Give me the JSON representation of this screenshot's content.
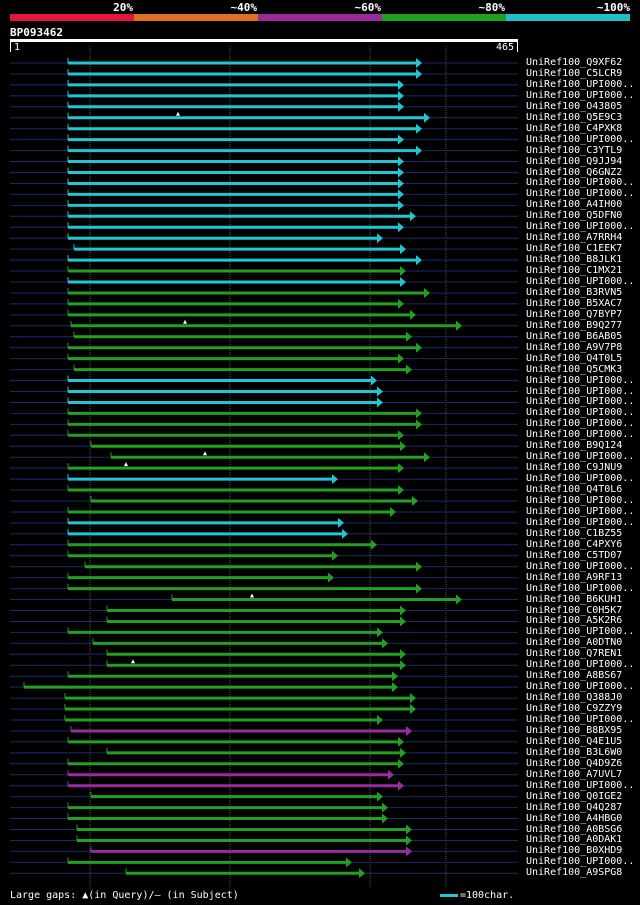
{
  "legend": {
    "segments": [
      {
        "label": "20%",
        "color": "#e3173a"
      },
      {
        "label": "~40%",
        "color": "#e07020"
      },
      {
        "label": "~60%",
        "color": "#9a2a9a"
      },
      {
        "label": "~80%",
        "color": "#20a020"
      },
      {
        "label": "~100%",
        "color": "#20c0c8"
      }
    ]
  },
  "query": {
    "id": "BP093462",
    "start": "1",
    "end": "465"
  },
  "colors": {
    "cyan": "#22c5d4",
    "green": "#22a022",
    "magenta": "#9a2aa0",
    "navy": "#1a2a6a",
    "grid": "#555555"
  },
  "hits": [
    {
      "label": "UniRef100_Q9XF62",
      "s": 68,
      "e": 416,
      "c": "cyan"
    },
    {
      "label": "UniRef100_C5LCR9",
      "s": 68,
      "e": 416,
      "c": "cyan"
    },
    {
      "label": "UniRef100_UPI000..",
      "s": 68,
      "e": 398,
      "c": "cyan"
    },
    {
      "label": "UniRef100_UPI000..",
      "s": 68,
      "e": 398,
      "c": "cyan"
    },
    {
      "label": "UniRef100_O43805",
      "s": 68,
      "e": 398,
      "c": "cyan"
    },
    {
      "label": "UniRef100_Q5E9C3",
      "s": 68,
      "e": 424,
      "c": "cyan",
      "gq": 178
    },
    {
      "label": "UniRef100_C4PXK8",
      "s": 68,
      "e": 416,
      "c": "cyan"
    },
    {
      "label": "UniRef100_UPI000..",
      "s": 68,
      "e": 398,
      "c": "cyan"
    },
    {
      "label": "UniRef100_C3YTL9",
      "s": 68,
      "e": 416,
      "c": "cyan"
    },
    {
      "label": "UniRef100_Q9JJ94",
      "s": 68,
      "e": 398,
      "c": "cyan"
    },
    {
      "label": "UniRef100_Q6GNZ2",
      "s": 68,
      "e": 398,
      "c": "cyan"
    },
    {
      "label": "UniRef100_UPI000..",
      "s": 68,
      "e": 398,
      "c": "cyan"
    },
    {
      "label": "UniRef100_UPI000..",
      "s": 68,
      "e": 398,
      "c": "cyan"
    },
    {
      "label": "UniRef100_A4IH00",
      "s": 68,
      "e": 398,
      "c": "cyan"
    },
    {
      "label": "UniRef100_Q5DFN0",
      "s": 68,
      "e": 410,
      "c": "cyan"
    },
    {
      "label": "UniRef100_UPI000..",
      "s": 68,
      "e": 398,
      "c": "cyan"
    },
    {
      "label": "UniRef100_A7RRH4",
      "s": 68,
      "e": 377,
      "c": "cyan"
    },
    {
      "label": "UniRef100_C1EEK7",
      "s": 74,
      "e": 400,
      "c": "cyan"
    },
    {
      "label": "UniRef100_B8JLK1",
      "s": 68,
      "e": 416,
      "c": "cyan"
    },
    {
      "label": "UniRef100_C1MX21",
      "s": 68,
      "e": 400,
      "c": "green"
    },
    {
      "label": "UniRef100_UPI000..",
      "s": 68,
      "e": 400,
      "c": "cyan"
    },
    {
      "label": "UniRef100_B3RVN5",
      "s": 68,
      "e": 424,
      "c": "green"
    },
    {
      "label": "UniRef100_B5XAC7",
      "s": 68,
      "e": 398,
      "c": "green"
    },
    {
      "label": "UniRef100_Q7BYP7",
      "s": 68,
      "e": 410,
      "c": "green"
    },
    {
      "label": "UniRef100_B9Q277",
      "s": 71,
      "e": 456,
      "c": "green",
      "gq": 185
    },
    {
      "label": "UniRef100_B6AB05",
      "s": 74,
      "e": 406,
      "c": "green"
    },
    {
      "label": "UniRef100_A9V7P8",
      "s": 68,
      "e": 416,
      "c": "green"
    },
    {
      "label": "UniRef100_Q4T0L5",
      "s": 68,
      "e": 398,
      "c": "green"
    },
    {
      "label": "UniRef100_Q5CMK3",
      "s": 74,
      "e": 406,
      "c": "green"
    },
    {
      "label": "UniRef100_UPI000..",
      "s": 68,
      "e": 371,
      "c": "cyan"
    },
    {
      "label": "UniRef100_UPI000..",
      "s": 68,
      "e": 377,
      "c": "cyan"
    },
    {
      "label": "UniRef100_UPI000..",
      "s": 68,
      "e": 377,
      "c": "cyan"
    },
    {
      "label": "UniRef100_UPI000..",
      "s": 68,
      "e": 416,
      "c": "green"
    },
    {
      "label": "UniRef100_UPI000..",
      "s": 68,
      "e": 416,
      "c": "green"
    },
    {
      "label": "UniRef100_UPI000..",
      "s": 68,
      "e": 398,
      "c": "green"
    },
    {
      "label": "UniRef100_B9Q124",
      "s": 91,
      "e": 400,
      "c": "green"
    },
    {
      "label": "UniRef100_UPI000..",
      "s": 111,
      "e": 424,
      "c": "green",
      "gq": 205
    },
    {
      "label": "UniRef100_C9JNU9",
      "s": 68,
      "e": 398,
      "c": "green",
      "gq": 126
    },
    {
      "label": "UniRef100_UPI000..",
      "s": 68,
      "e": 332,
      "c": "cyan"
    },
    {
      "label": "UniRef100_Q4T0L6",
      "s": 68,
      "e": 398,
      "c": "green"
    },
    {
      "label": "UniRef100_UPI000..",
      "s": 91,
      "e": 412,
      "c": "green"
    },
    {
      "label": "UniRef100_UPI000..",
      "s": 68,
      "e": 390,
      "c": "green"
    },
    {
      "label": "UniRef100_UPI000..",
      "s": 68,
      "e": 338,
      "c": "cyan"
    },
    {
      "label": "UniRef100_C1BZ55",
      "s": 68,
      "e": 342,
      "c": "cyan"
    },
    {
      "label": "UniRef100_C4PXY6",
      "s": 68,
      "e": 371,
      "c": "green"
    },
    {
      "label": "UniRef100_C5TD07",
      "s": 68,
      "e": 332,
      "c": "green"
    },
    {
      "label": "UniRef100_UPI000..",
      "s": 85,
      "e": 416,
      "c": "green"
    },
    {
      "label": "UniRef100_A9RF13",
      "s": 68,
      "e": 328,
      "c": "green"
    },
    {
      "label": "UniRef100_UPI000..",
      "s": 68,
      "e": 416,
      "c": "green"
    },
    {
      "label": "UniRef100_B6KUH1",
      "s": 172,
      "e": 456,
      "c": "green",
      "gq": 252
    },
    {
      "label": "UniRef100_C0H5K7",
      "s": 107,
      "e": 400,
      "c": "green"
    },
    {
      "label": "UniRef100_A5K2R6",
      "s": 107,
      "e": 400,
      "c": "green"
    },
    {
      "label": "UniRef100_UPI000..",
      "s": 68,
      "e": 377,
      "c": "green"
    },
    {
      "label": "UniRef100_A0DTN0",
      "s": 93,
      "e": 382,
      "c": "green"
    },
    {
      "label": "UniRef100_Q7REN1",
      "s": 107,
      "e": 400,
      "c": "green"
    },
    {
      "label": "UniRef100_UPI000..",
      "s": 107,
      "e": 400,
      "c": "green",
      "gq": 133
    },
    {
      "label": "UniRef100_A8BS67",
      "s": 68,
      "e": 392,
      "c": "green"
    },
    {
      "label": "UniRef100_UPI000..",
      "s": 24,
      "e": 392,
      "c": "green"
    },
    {
      "label": "UniRef100_Q388J0",
      "s": 65,
      "e": 410,
      "c": "green"
    },
    {
      "label": "UniRef100_C9ZZY9",
      "s": 65,
      "e": 410,
      "c": "green"
    },
    {
      "label": "UniRef100_UPI000..",
      "s": 65,
      "e": 377,
      "c": "green"
    },
    {
      "label": "UniRef100_B8BX95",
      "s": 71,
      "e": 406,
      "c": "magenta"
    },
    {
      "label": "UniRef100_Q4E1U5",
      "s": 68,
      "e": 398,
      "c": "green"
    },
    {
      "label": "UniRef100_B3L6W0",
      "s": 107,
      "e": 400,
      "c": "green"
    },
    {
      "label": "UniRef100_Q4D9Z6",
      "s": 68,
      "e": 398,
      "c": "green"
    },
    {
      "label": "UniRef100_A7UVL7",
      "s": 68,
      "e": 388,
      "c": "magenta"
    },
    {
      "label": "UniRef100_UPI000..",
      "s": 68,
      "e": 398,
      "c": "magenta"
    },
    {
      "label": "UniRef100_Q0IGE2",
      "s": 91,
      "e": 377,
      "c": "green"
    },
    {
      "label": "UniRef100_Q4Q287",
      "s": 68,
      "e": 382,
      "c": "green"
    },
    {
      "label": "UniRef100_A4HBG0",
      "s": 68,
      "e": 382,
      "c": "green"
    },
    {
      "label": "UniRef100_A0BSG6",
      "s": 77,
      "e": 406,
      "c": "green"
    },
    {
      "label": "UniRef100_A0DAK1",
      "s": 77,
      "e": 406,
      "c": "green"
    },
    {
      "label": "UniRef100_B0XHD9",
      "s": 91,
      "e": 406,
      "c": "magenta"
    },
    {
      "label": "UniRef100_UPI000..",
      "s": 68,
      "e": 346,
      "c": "green"
    },
    {
      "label": "UniRef100_A9SPG8",
      "s": 126,
      "e": 359,
      "c": "green"
    }
  ],
  "footer": {
    "text": "Large gaps: ▲(in Query)/– (in Subject)",
    "scale": "=100char."
  }
}
